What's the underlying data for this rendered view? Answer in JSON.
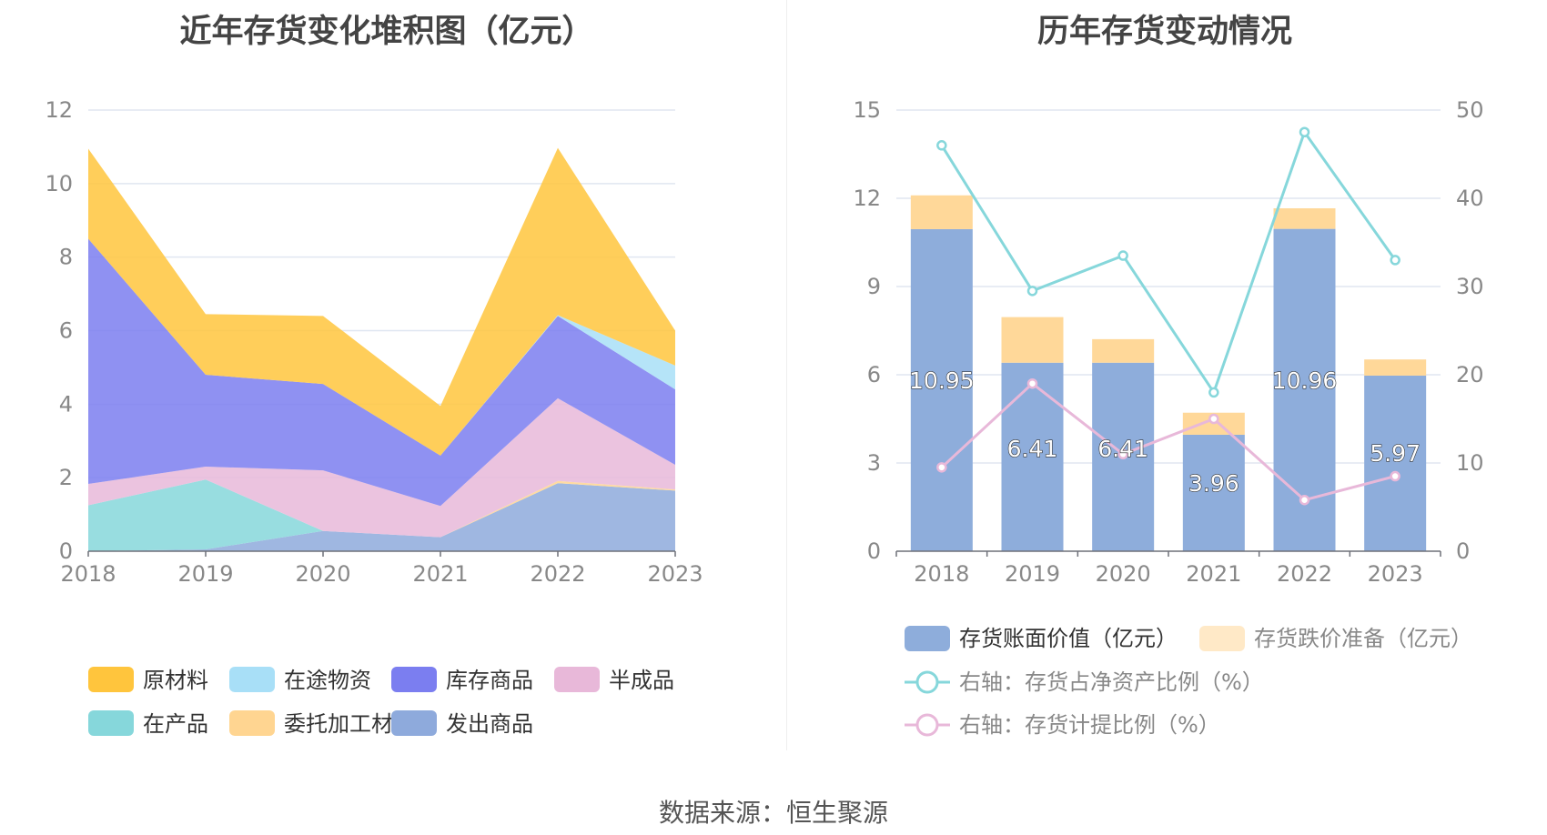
{
  "left_chart": {
    "title": "近年存货变化堆积图（亿元）",
    "y_ticks": [
      "0",
      "2",
      "4",
      "6",
      "8",
      "10",
      "12"
    ],
    "legend_rows": [
      [
        0,
        1,
        2,
        3
      ],
      [
        4,
        5,
        6
      ]
    ]
  },
  "right_chart": {
    "title": "历年存货变动情况",
    "y_left_ticks": [
      "0",
      "3",
      "6",
      "9",
      "12",
      "15"
    ],
    "y_right_ticks": [
      "0",
      "10",
      "20",
      "30",
      "40",
      "50"
    ],
    "bar_labels": [
      "10.95",
      "6.41",
      "6.41",
      "3.96",
      "10.96",
      "5.97"
    ]
  },
  "source": "数据来源：恒生聚源",
  "chart_data": [
    {
      "type": "area",
      "title": "近年存货变化堆积图（亿元）",
      "categories": [
        "2018",
        "2019",
        "2020",
        "2021",
        "2022",
        "2023"
      ],
      "ylim": [
        0,
        12
      ],
      "grid": true,
      "legend_position": "bottom",
      "stacked": true,
      "series": [
        {
          "name": "发出商品",
          "color": "#8eaadc",
          "values": [
            0,
            0.05,
            0.55,
            0.38,
            1.85,
            1.65
          ]
        },
        {
          "name": "委托加工材料",
          "color": "#ffd591",
          "values": [
            0,
            0,
            0,
            0,
            0.06,
            0.03
          ]
        },
        {
          "name": "在产品",
          "color": "#86d7db",
          "values": [
            1.25,
            1.9,
            0,
            0,
            0,
            0
          ]
        },
        {
          "name": "半成品",
          "color": "#e8b8d9",
          "values": [
            0.58,
            0.35,
            1.65,
            0.85,
            2.25,
            0.67
          ]
        },
        {
          "name": "库存商品",
          "color": "#7b7ef0",
          "values": [
            6.67,
            2.5,
            2.35,
            1.37,
            2.24,
            2.05
          ]
        },
        {
          "name": "在途物资",
          "color": "#a8dff7",
          "values": [
            0,
            0,
            0,
            0,
            0.02,
            0.65
          ]
        },
        {
          "name": "原材料",
          "color": "#ffc53d",
          "values": [
            2.45,
            1.65,
            1.85,
            1.35,
            4.55,
            0.95
          ]
        }
      ],
      "legend_order": [
        "原材料",
        "在途物资",
        "库存商品",
        "半成品",
        "在产品",
        "委托加工材料",
        "发出商品"
      ]
    },
    {
      "type": "bar",
      "title": "历年存货变动情况",
      "categories": [
        "2018",
        "2019",
        "2020",
        "2021",
        "2022",
        "2023"
      ],
      "ylim": [
        0,
        15
      ],
      "y2lim": [
        0,
        50
      ],
      "grid": true,
      "legend_position": "bottom",
      "series": [
        {
          "name": "存货账面价值（亿元）",
          "type": "bar",
          "stack": "a",
          "color": "#8eaddb",
          "values": [
            10.95,
            6.41,
            6.41,
            3.96,
            10.96,
            5.97
          ]
        },
        {
          "name": "存货跌价准备（亿元）",
          "type": "bar",
          "stack": "a",
          "color": "#ffd899",
          "values": [
            1.15,
            1.55,
            0.8,
            0.75,
            0.7,
            0.55
          ]
        },
        {
          "name": "右轴：存货占净资产比例（%）",
          "type": "line",
          "axis": "right",
          "color": "#86d7db",
          "values": [
            46,
            29.5,
            33.5,
            18,
            47.5,
            33
          ]
        },
        {
          "name": "右轴：存货计提比例（%）",
          "type": "line",
          "axis": "right",
          "color": "#e8b8d9",
          "values": [
            9.5,
            19,
            11,
            15,
            5.8,
            8.5
          ]
        }
      ]
    }
  ]
}
